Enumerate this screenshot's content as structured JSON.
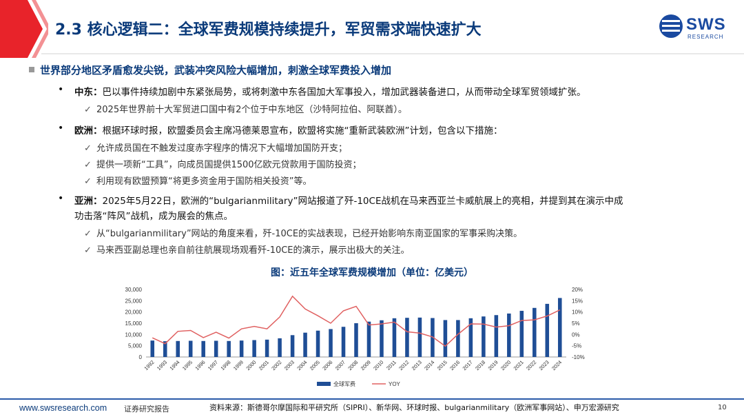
{
  "header": {
    "title": "2.3 核心逻辑二：全球军费规模持续提升，军贸需求端快速扩大",
    "logo_text": "SWS",
    "logo_sub": "RESEARCH"
  },
  "main_bullet": "世界部分地区矛盾愈发尖锐，武装冲突风险大幅增加，刺激全球军费投入增加",
  "sections": [
    {
      "region": "中东：",
      "text": "巴以事件持续加剧中东紧张局势，或将刺激中东各国加大军事投入，增加武器装备进口，从而带动全球军贸领域扩张。",
      "subs": [
        "2025年世界前十大军贸进口国中有2个位于中东地区（沙特阿拉伯、阿联酋）。"
      ]
    },
    {
      "region": "欧洲：",
      "text": "根据环球时报，欧盟委员会主席冯德莱恩宣布，欧盟将实施“重新武装欧洲”计划，包含以下措施：",
      "subs": [
        "允许成员国在不触发过度赤字程序的情况下大幅增加国防开支；",
        "提供一项新“工具”，向成员国提供1500亿欧元贷款用于国防投资；",
        "利用现有欧盟预算“将更多资金用于国防相关投资”等。"
      ]
    },
    {
      "region": "亚洲：",
      "text": "2025年5月22日，欧洲的“bulgarianmilitary”网站报道了歼-10CE战机在马来西亚兰卡威航展上的亮相，并提到其在演示中成",
      "text2": "功击落“阵风”战机，成为展会的焦点。",
      "subs": [
        "从“bulgarianmilitary”网站的角度来看，歼-10CE的实战表现，已经开始影响东南亚国家的军事采购决策。",
        "马来西亚副总理也亲自前往航展现场观看歼-10CE的演示，展示出极大的关注。"
      ]
    }
  ],
  "chart_title": "图：近五年全球军费规模增加（单位：亿美元）",
  "chart_data": {
    "type": "bar",
    "categories": [
      "1992",
      "1993",
      "1994",
      "1995",
      "1996",
      "1997",
      "1998",
      "1999",
      "2000",
      "2001",
      "2002",
      "2003",
      "2004",
      "2005",
      "2006",
      "2007",
      "2008",
      "2009",
      "2010",
      "2011",
      "2012",
      "2013",
      "2014",
      "2015",
      "2016",
      "2017",
      "2018",
      "2019",
      "2020",
      "2021",
      "2022",
      "2023",
      "2024"
    ],
    "series": [
      {
        "name": "全球军费",
        "type": "bar",
        "axis": "left",
        "color": "#1f4e96",
        "values": [
          7300,
          7000,
          7100,
          7200,
          7100,
          7200,
          7100,
          7300,
          7500,
          7700,
          8300,
          9700,
          10800,
          11700,
          12400,
          13400,
          15000,
          15700,
          16300,
          17200,
          17400,
          17500,
          17300,
          16400,
          16400,
          17200,
          18000,
          18600,
          19300,
          20500,
          21800,
          23600,
          26200
        ]
      },
      {
        "name": "YOY",
        "type": "line",
        "axis": "right",
        "color": "#e06060",
        "values": [
          -1.5,
          -4.1,
          1.4,
          1.8,
          -1.4,
          1.0,
          -1.6,
          2.5,
          3.6,
          2.5,
          7.8,
          17.0,
          11.3,
          8.3,
          5.0,
          10.5,
          12.5,
          4.2,
          4.7,
          5.5,
          1.2,
          0.6,
          -1.1,
          -5.2,
          0.1,
          4.7,
          4.6,
          3.3,
          3.9,
          6.2,
          6.5,
          8.2,
          10.9
        ]
      }
    ],
    "y_left": {
      "min": 0,
      "max": 30000,
      "ticks": [
        "0",
        "5,000",
        "10,000",
        "15,000",
        "20,000",
        "25,000",
        "30,000"
      ]
    },
    "y_right": {
      "min": -10,
      "max": 20,
      "ticks": [
        "-10%",
        "-5%",
        "0%",
        "5%",
        "10%",
        "15%",
        "20%"
      ]
    },
    "legend": "bottom-center"
  },
  "footer": {
    "url": "www.swsresearch.com",
    "report": "证券研究报告",
    "source": "资料来源：斯德哥尔摩国际和平研究所（SIPRI）、新华网、环球时报、bulgarianmilitary（欧洲军事网站）、申万宏源研究",
    "page": "10"
  },
  "colors": {
    "title_blue": "#0a3a7a",
    "accent_red": "#e8232a",
    "bar_blue": "#1f4e96",
    "line_red": "#e06060"
  },
  "icons": {
    "check": "✓",
    "bullet": "•"
  }
}
